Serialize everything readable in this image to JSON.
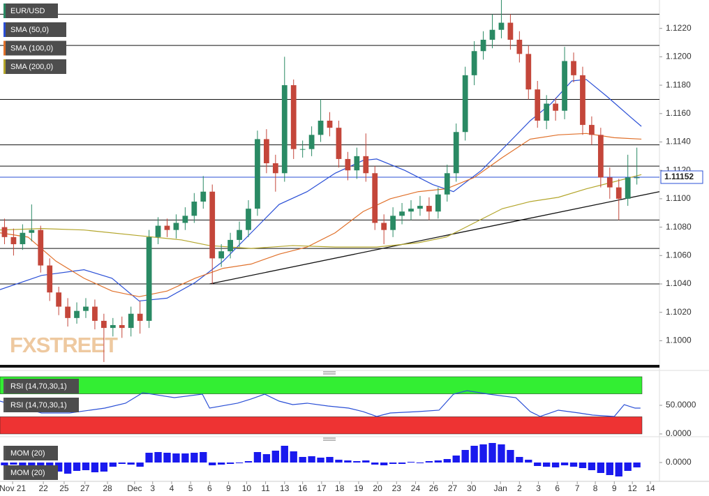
{
  "chart_data": [
    {
      "type": "candlestick",
      "title": "EUR/USD",
      "up_color": "#2a8a64",
      "down_color": "#c4463a",
      "title_color": "#2a8a64",
      "open": [
        1.108,
        1.1073,
        1.1068,
        1.1076,
        1.1078,
        1.1053,
        1.1034,
        1.1024,
        1.1016,
        1.1021,
        1.1024,
        1.1014,
        1.1009,
        1.1011,
        1.1009,
        1.1019,
        1.1014,
        1.1073,
        1.1081,
        1.1078,
        1.1083,
        1.1088,
        1.1098,
        1.1105,
        1.1058,
        1.1063,
        1.1071,
        1.1078,
        1.1093,
        1.1142,
        1.1125,
        1.1118,
        1.118,
        1.1135,
        1.1135,
        1.1145,
        1.1155,
        1.115,
        1.1128,
        1.112,
        1.113,
        1.1118,
        1.1083,
        1.1078,
        1.1088,
        1.1091,
        1.1093,
        1.1095,
        1.1091,
        1.1103,
        1.1118,
        1.1147,
        1.1187,
        1.1204,
        1.1212,
        1.1219,
        1.1224,
        1.1212,
        1.1202,
        1.1177,
        1.1155,
        1.1167,
        1.1162,
        1.1197,
        1.1187,
        1.1152,
        1.1145,
        1.1115,
        1.1108,
        1.11,
        1.1115
      ],
      "high": [
        1.1086,
        1.1079,
        1.1082,
        1.1096,
        1.1081,
        1.1058,
        1.1038,
        1.103,
        1.1027,
        1.103,
        1.1029,
        1.1019,
        1.1016,
        1.1017,
        1.1024,
        1.1028,
        1.1078,
        1.1087,
        1.1086,
        1.1089,
        1.1094,
        1.1104,
        1.1116,
        1.111,
        1.1068,
        1.1076,
        1.1084,
        1.1099,
        1.1148,
        1.1149,
        1.1131,
        1.12,
        1.1184,
        1.1141,
        1.1151,
        1.117,
        1.1161,
        1.1155,
        1.1133,
        1.1136,
        1.1146,
        1.1123,
        1.1089,
        1.1094,
        1.1097,
        1.1099,
        1.1102,
        1.1101,
        1.1108,
        1.1124,
        1.1153,
        1.1193,
        1.1211,
        1.1218,
        1.123,
        1.124,
        1.123,
        1.1218,
        1.1208,
        1.1183,
        1.1173,
        1.1171,
        1.1207,
        1.1203,
        1.1193,
        1.1158,
        1.115,
        1.1122,
        1.1114,
        1.1131,
        1.1136
      ],
      "low": [
        1.1068,
        1.106,
        1.1064,
        1.107,
        1.1048,
        1.1028,
        1.1018,
        1.101,
        1.1012,
        1.1016,
        1.1008,
        1.0985,
        1.1003,
        1.1002,
        1.1003,
        1.1005,
        1.1009,
        1.1068,
        1.1073,
        1.1072,
        1.1078,
        1.1083,
        1.1093,
        1.104,
        1.1052,
        1.1058,
        1.1066,
        1.1073,
        1.1088,
        1.1118,
        1.1105,
        1.1112,
        1.1128,
        1.1129,
        1.113,
        1.114,
        1.1144,
        1.1122,
        1.1113,
        1.1114,
        1.1112,
        1.1078,
        1.1068,
        1.1073,
        1.1082,
        1.1085,
        1.1088,
        1.1085,
        1.1086,
        1.1098,
        1.1112,
        1.1141,
        1.118,
        1.1198,
        1.1206,
        1.1213,
        1.1205,
        1.1196,
        1.117,
        1.115,
        1.1149,
        1.1155,
        1.1156,
        1.1182,
        1.1145,
        1.1138,
        1.1108,
        1.11,
        1.1085,
        1.1095,
        1.111
      ],
      "close": [
        1.1073,
        1.1068,
        1.1076,
        1.1078,
        1.1053,
        1.1034,
        1.1024,
        1.1016,
        1.1021,
        1.1024,
        1.1014,
        1.1009,
        1.1011,
        1.1009,
        1.1019,
        1.1014,
        1.1073,
        1.1081,
        1.1078,
        1.1083,
        1.1088,
        1.1098,
        1.1105,
        1.1058,
        1.1063,
        1.1071,
        1.1078,
        1.1093,
        1.1142,
        1.1125,
        1.1118,
        1.118,
        1.1135,
        1.1135,
        1.1145,
        1.1155,
        1.115,
        1.1128,
        1.112,
        1.113,
        1.1118,
        1.1083,
        1.1078,
        1.1088,
        1.1091,
        1.1093,
        1.1095,
        1.1091,
        1.1103,
        1.1118,
        1.1147,
        1.1187,
        1.1204,
        1.1212,
        1.1219,
        1.1224,
        1.1212,
        1.1202,
        1.1177,
        1.1155,
        1.1167,
        1.1162,
        1.1197,
        1.1187,
        1.1152,
        1.1145,
        1.1115,
        1.1108,
        1.11,
        1.1115,
        1.1115
      ],
      "overlays": [
        {
          "name": "SMA (50,0)",
          "color": "#2a4fd6",
          "x": [
            0,
            4.6,
            9.3,
            12.4,
            15.4,
            18.5,
            21.6,
            24.7,
            27.8,
            30.9,
            34,
            37.1,
            40.2,
            41.7,
            44.8,
            47.9,
            50.2,
            53.3,
            56.4,
            58.7,
            61,
            63.3,
            64.9,
            67.2,
            69.9,
            71
          ],
          "values": [
            1.1036,
            1.1046,
            1.105,
            1.1044,
            1.1028,
            1.103,
            1.1041,
            1.1056,
            1.1076,
            1.1096,
            1.1105,
            1.1118,
            1.1127,
            1.1128,
            1.112,
            1.111,
            1.1105,
            1.112,
            1.114,
            1.1155,
            1.1167,
            1.1183,
            1.1184,
            1.1172,
            1.1157,
            1.1151
          ]
        },
        {
          "name": "SMA (100,0)",
          "color": "#e0702a",
          "x": [
            0,
            3.1,
            6.2,
            9.3,
            12.4,
            15.4,
            18.5,
            21.6,
            24.7,
            27.8,
            30.9,
            34,
            37.1,
            40.2,
            43.2,
            46.3,
            49.4,
            52.5,
            55.6,
            58.7,
            61.8,
            64.9,
            68,
            71
          ],
          "values": [
            1.1076,
            1.1073,
            1.1056,
            1.1044,
            1.1035,
            1.1031,
            1.1035,
            1.1044,
            1.1051,
            1.1054,
            1.1061,
            1.1066,
            1.1076,
            1.1091,
            1.11,
            1.1105,
            1.1107,
            1.1115,
            1.1129,
            1.1142,
            1.1145,
            1.1146,
            1.1143,
            1.1142
          ]
        },
        {
          "name": "SMA (200,0)",
          "color": "#b3a52a",
          "x": [
            0,
            4.6,
            9.3,
            15.4,
            20.1,
            23.2,
            27.8,
            32.4,
            37.1,
            41.7,
            46.3,
            49.4,
            52.5,
            55.6,
            58.7,
            61.8,
            64.9,
            68,
            71
          ],
          "values": [
            1.1078,
            1.1079,
            1.1078,
            1.1074,
            1.1071,
            1.1067,
            1.1065,
            1.1067,
            1.1066,
            1.1066,
            1.1069,
            1.1073,
            1.1083,
            1.1093,
            1.1098,
            1.1101,
            1.1107,
            1.1112,
            1.1117
          ]
        }
      ],
      "levels": [
        1.123,
        1.1208,
        1.117,
        1.1138,
        1.1123,
        1.1085,
        1.1065,
        1.104
      ],
      "trendline": {
        "x": [
          23.2,
          73
        ],
        "values": [
          1.104,
          1.1105
        ]
      },
      "last_price": 1.11152,
      "last_price_color": "#2a4fd6",
      "watermark": "FXSTREET",
      "xlim": [
        0,
        73
      ],
      "xticks": [
        {
          "value": 1.4,
          "label": "Nov 21"
        },
        {
          "value": 4.8,
          "label": "22"
        },
        {
          "value": 7.1,
          "label": "25"
        },
        {
          "value": 9.4,
          "label": "27"
        },
        {
          "value": 11.9,
          "label": "28"
        },
        {
          "value": 14.9,
          "label": "Dec"
        },
        {
          "value": 16.9,
          "label": "3"
        },
        {
          "value": 19,
          "label": "4"
        },
        {
          "value": 21.1,
          "label": "5"
        },
        {
          "value": 23.2,
          "label": "6"
        },
        {
          "value": 25.3,
          "label": "9"
        },
        {
          "value": 27.3,
          "label": "10"
        },
        {
          "value": 29.4,
          "label": "11"
        },
        {
          "value": 31.5,
          "label": "13"
        },
        {
          "value": 33.5,
          "label": "16"
        },
        {
          "value": 35.6,
          "label": "17"
        },
        {
          "value": 37.6,
          "label": "18"
        },
        {
          "value": 39.7,
          "label": "19"
        },
        {
          "value": 41.8,
          "label": "20"
        },
        {
          "value": 43.9,
          "label": "23"
        },
        {
          "value": 46,
          "label": "24"
        },
        {
          "value": 48,
          "label": "26"
        },
        {
          "value": 50.1,
          "label": "27"
        },
        {
          "value": 52.2,
          "label": "30"
        },
        {
          "value": 55.4,
          "label": "Jan"
        },
        {
          "value": 57.5,
          "label": "2"
        },
        {
          "value": 59.6,
          "label": "3"
        },
        {
          "value": 61.7,
          "label": "6"
        },
        {
          "value": 63.9,
          "label": "7"
        },
        {
          "value": 65.9,
          "label": "8"
        },
        {
          "value": 68,
          "label": "9"
        },
        {
          "value": 70,
          "label": "12"
        },
        {
          "value": 72,
          "label": "14"
        }
      ],
      "ylim": [
        1.0983,
        1.124
      ],
      "yticks": [
        {
          "value": 1.1,
          "label": "1.1000"
        },
        {
          "value": 1.102,
          "label": "1.1020"
        },
        {
          "value": 1.104,
          "label": "1.1040"
        },
        {
          "value": 1.106,
          "label": "1.1060"
        },
        {
          "value": 1.108,
          "label": "1.1080"
        },
        {
          "value": 1.11,
          "label": "1.1100"
        },
        {
          "value": 1.112,
          "label": "1.1120"
        },
        {
          "value": 1.114,
          "label": "1.1140"
        },
        {
          "value": 1.116,
          "label": "1.1160"
        },
        {
          "value": 1.118,
          "label": "1.1180"
        },
        {
          "value": 1.12,
          "label": "1.1200"
        },
        {
          "value": 1.122,
          "label": "1.1220"
        }
      ]
    },
    {
      "type": "line",
      "title": "RSI (14,70,30,1)",
      "bands": [
        {
          "from": 70,
          "to": 100,
          "color": "#33ee33"
        },
        {
          "from": 0,
          "to": 30,
          "color": "#ee3333"
        }
      ],
      "series": [
        {
          "name": "RSI (14,70,30,1)",
          "color": "#2a4fd6",
          "x": [
            0,
            4.6,
            7.7,
            11.6,
            13.9,
            15.8,
            19.3,
            22.4,
            23.2,
            26.3,
            27.8,
            29.3,
            30.9,
            32.4,
            34,
            36.3,
            38.6,
            40.2,
            41.7,
            43.2,
            46.3,
            48.6,
            50.2,
            51.7,
            54.1,
            57.1,
            58.7,
            59.8,
            61.8,
            64.1,
            65.6,
            68,
            69.1,
            70.3,
            70.9
          ],
          "values": [
            57.3,
            36.6,
            36.6,
            45.1,
            53.7,
            72,
            63.4,
            69.5,
            45.1,
            53.7,
            61,
            69.5,
            57.3,
            51.2,
            53.7,
            48.8,
            45.1,
            39,
            30.5,
            36.6,
            39,
            41.5,
            69.5,
            75.6,
            69.5,
            63.4,
            39,
            30.5,
            41.5,
            36.6,
            32.9,
            30.5,
            51.2,
            45.1,
            45.1
          ]
        }
      ],
      "xlim": [
        0,
        73
      ],
      "ylim": [
        0,
        100
      ],
      "yticks": [
        {
          "value": 50,
          "label": "50.0000"
        },
        {
          "value": 0,
          "label": "0.0000"
        }
      ]
    },
    {
      "type": "bar",
      "title": "MOM (20)",
      "series": [
        {
          "name": "MOM (20)",
          "color": "#1a1aee",
          "values": [
            -0.0004,
            -0.0003,
            -0.0004,
            -0.0006,
            -0.0012,
            -0.0014,
            -0.0013,
            -0.0016,
            -0.0012,
            -0.0011,
            -0.0014,
            -0.0013,
            -0.0006,
            -0.0002,
            -0.0003,
            -0.0006,
            0.0014,
            0.0015,
            0.0014,
            0.0013,
            0.0013,
            0.0014,
            0.0015,
            -0.0004,
            -0.0003,
            -0.0002,
            -0.0001,
            0.0002,
            0.0015,
            0.0012,
            0.0017,
            0.0024,
            0.0016,
            0.0008,
            0.0009,
            0.0007,
            0.0008,
            0.0004,
            0.0003,
            0.0002,
            0.0003,
            -0.0003,
            -0.0004,
            -0.0002,
            -0.0002,
            0.0001,
            -0.0001,
            0.0002,
            0.0003,
            0.0005,
            0.001,
            0.0018,
            0.0024,
            0.0026,
            0.0028,
            0.0026,
            0.0018,
            0.0008,
            0.0004,
            -0.0005,
            -0.0006,
            -0.0007,
            -0.0004,
            -0.0006,
            -0.0008,
            -0.0011,
            -0.0015,
            -0.0018,
            -0.002,
            -0.0012,
            -0.0007
          ]
        }
      ],
      "xlim": [
        0,
        73
      ],
      "ylim": [
        -0.0027,
        0.0031
      ],
      "yticks": [
        {
          "value": 0,
          "label": "0.0000"
        }
      ]
    }
  ]
}
